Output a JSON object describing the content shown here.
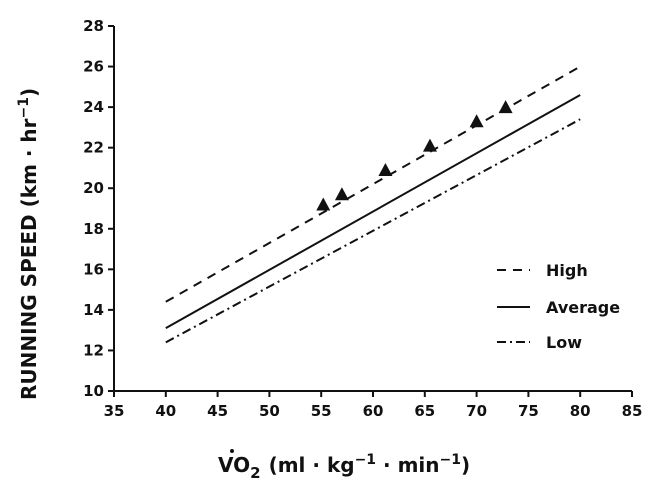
{
  "chart_data": {
    "type": "line",
    "xlabel_main": "VO",
    "xlabel_sub": "2",
    "xlabel_unit": "(ml · kg",
    "xlabel_exp1": "−1",
    "xlabel_mid": " · min",
    "xlabel_exp2": "−1",
    "xlabel_close": ")",
    "ylabel_main": "RUNNING SPEED (km · hr",
    "ylabel_exp": "−1",
    "ylabel_close": ")",
    "xlim": [
      35,
      85
    ],
    "ylim": [
      10,
      28
    ],
    "xticks": [
      35,
      40,
      45,
      50,
      55,
      60,
      65,
      70,
      75,
      80,
      85
    ],
    "yticks": [
      10,
      12,
      14,
      16,
      18,
      20,
      22,
      24,
      26,
      28
    ],
    "series": [
      {
        "name": "High",
        "style": "dashed",
        "x": [
          40,
          80
        ],
        "y": [
          14.4,
          26.0
        ]
      },
      {
        "name": "Average",
        "style": "solid",
        "x": [
          40,
          80
        ],
        "y": [
          13.1,
          24.6
        ]
      },
      {
        "name": "Low",
        "style": "dashdot",
        "x": [
          40,
          80
        ],
        "y": [
          12.4,
          23.4
        ]
      }
    ],
    "points": {
      "marker": "triangle",
      "x": [
        55.2,
        57.0,
        61.2,
        65.5,
        70.0,
        72.8
      ],
      "y": [
        19.2,
        19.7,
        20.9,
        22.1,
        23.3,
        24.0
      ]
    },
    "legend_position": "right",
    "grid": false
  }
}
